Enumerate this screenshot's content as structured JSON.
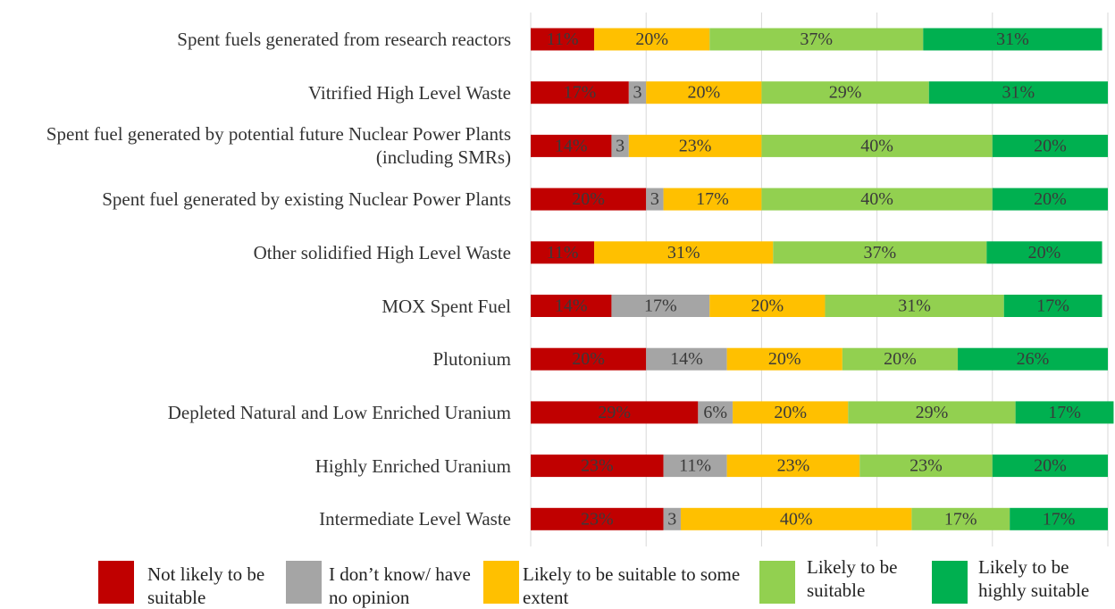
{
  "chart_data": {
    "type": "stacked_bar_horizontal",
    "categories": [
      "Spent fuels generated from research reactors",
      "Vitrified High Level Waste",
      "Spent fuel generated by potential future Nuclear Power Plants (including SMRs)",
      "Spent fuel generated by existing Nuclear Power Plants",
      "Other solidified High Level Waste",
      "MOX Spent Fuel",
      "Plutonium",
      "Depleted Natural and Low Enriched Uranium",
      "Highly Enriched Uranium",
      "Intermediate Level Waste"
    ],
    "series": [
      {
        "name": "Not likely to be suitable",
        "color": "#c00000",
        "values": [
          11,
          17,
          14,
          20,
          11,
          14,
          20,
          29,
          23,
          23
        ],
        "value_labels": [
          "11%",
          "17%",
          "14%",
          "20%",
          "11%",
          "14%",
          "20%",
          "29%",
          "23%",
          "23%"
        ]
      },
      {
        "name": "I don’t know/ have no opinion",
        "color": "#a5a5a5",
        "values": [
          0,
          3,
          3,
          3,
          0,
          17,
          14,
          6,
          11,
          3
        ],
        "value_labels": [
          null,
          "3",
          "3",
          "3",
          null,
          "17%",
          "14%",
          "6%",
          "11%",
          "3"
        ]
      },
      {
        "name": "Likely to be suitable to some extent",
        "color": "#ffc000",
        "values": [
          20,
          20,
          23,
          17,
          31,
          20,
          20,
          20,
          23,
          40
        ],
        "value_labels": [
          "20%",
          "20%",
          "23%",
          "17%",
          "31%",
          "20%",
          "20%",
          "20%",
          "23%",
          "40%"
        ]
      },
      {
        "name": "Likely to be suitable",
        "color": "#92d050",
        "values": [
          37,
          29,
          40,
          40,
          37,
          31,
          20,
          29,
          23,
          17
        ],
        "value_labels": [
          "37%",
          "29%",
          "40%",
          "40%",
          "37%",
          "31%",
          "20%",
          "29%",
          "23%",
          "17%"
        ]
      },
      {
        "name": "Likely to be highly suitable",
        "color": "#00b050",
        "values": [
          31,
          31,
          20,
          20,
          20,
          17,
          26,
          17,
          20,
          17
        ],
        "value_labels": [
          "31%",
          "31%",
          "20%",
          "20%",
          "20%",
          "17%",
          "26%",
          "17%",
          "20%",
          "17%"
        ]
      }
    ],
    "xlim": [
      0,
      100
    ],
    "xticks": [
      0,
      20,
      40,
      60,
      80,
      100
    ],
    "grid": true
  }
}
